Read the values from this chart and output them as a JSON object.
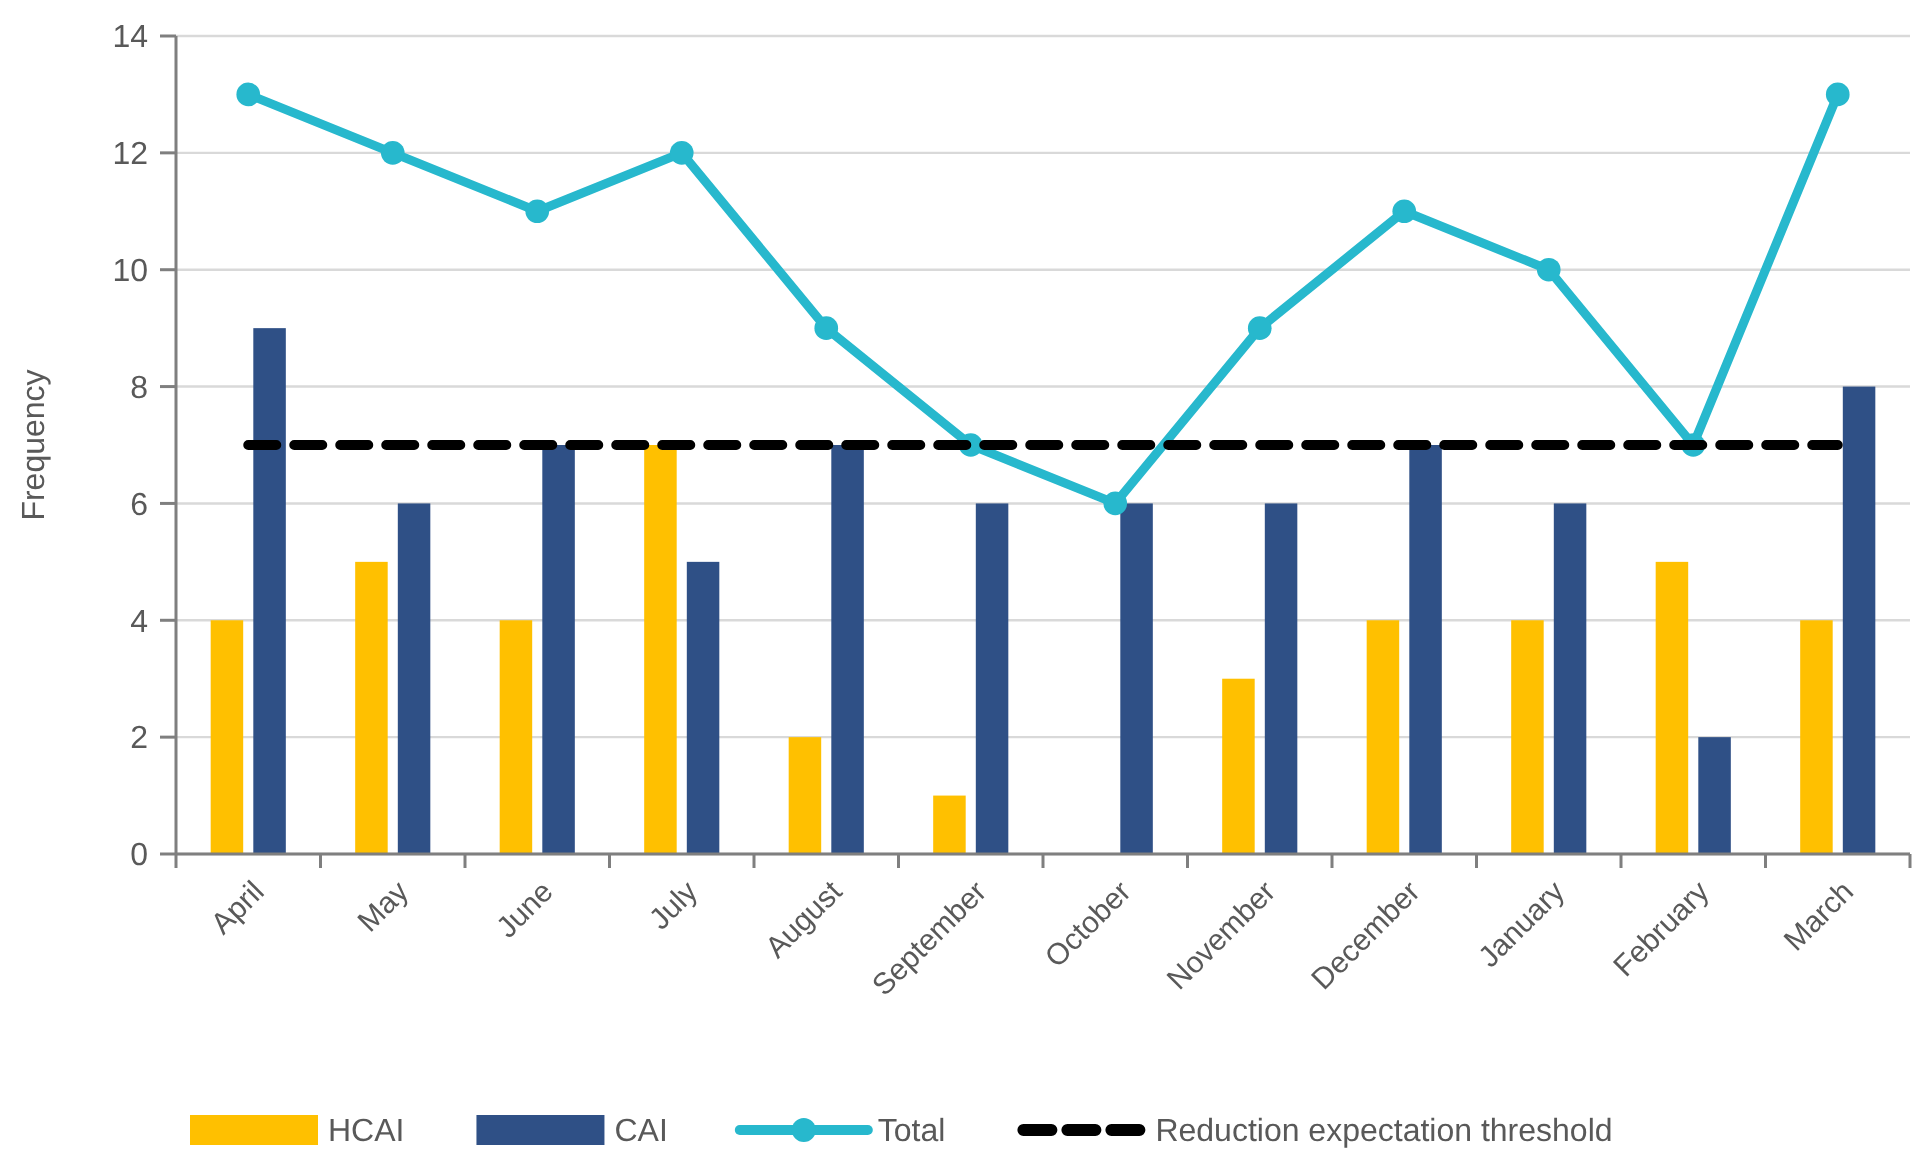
{
  "chart_data": {
    "type": "bar",
    "ylabel": "Frequency",
    "categories": [
      "April",
      "May",
      "June",
      "July",
      "August",
      "September",
      "October",
      "November",
      "December",
      "January",
      "February",
      "March"
    ],
    "ylim": [
      0,
      14
    ],
    "yticks": [
      0,
      2,
      4,
      6,
      8,
      10,
      12,
      14
    ],
    "grid": "y",
    "legend": "bottom",
    "series": [
      {
        "name": "HCAI",
        "color": "#ffc000",
        "values": [
          4,
          5,
          4,
          7,
          2,
          1,
          0,
          3,
          4,
          4,
          5,
          4
        ]
      },
      {
        "name": "CAI",
        "color": "#2f5086",
        "values": [
          9,
          6,
          7,
          5,
          7,
          6,
          6,
          6,
          7,
          6,
          2,
          8
        ]
      },
      {
        "name": "Total",
        "type": "line",
        "color": "#27b8cd",
        "marker": "circle",
        "values": [
          13,
          12,
          11,
          12,
          9,
          7,
          6,
          9,
          11,
          10,
          7,
          13
        ]
      },
      {
        "name": "Reduction expectation threshold",
        "type": "line",
        "color": "#000000",
        "line_style": "dashed",
        "marker": "none",
        "values": [
          7,
          7,
          7,
          7,
          7,
          7,
          7,
          7,
          7,
          7,
          7,
          7
        ]
      }
    ]
  }
}
